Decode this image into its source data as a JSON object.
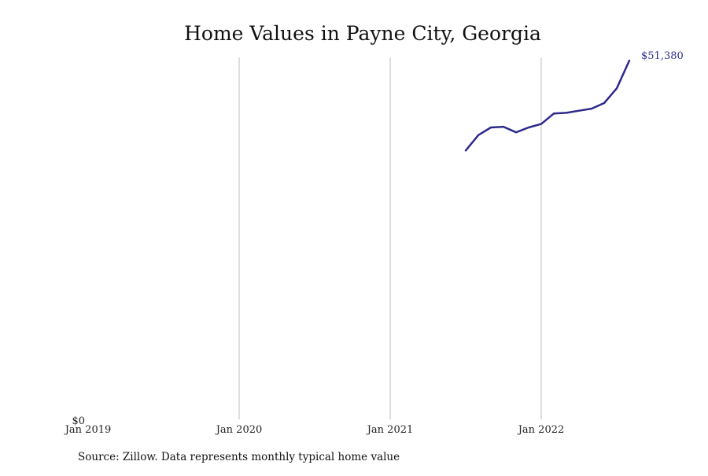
{
  "chart_data": {
    "type": "line",
    "title": "Home Values in Payne City, Georgia",
    "source": "Source: Zillow. Data represents monthly typical home value",
    "x_ticks": [
      {
        "date": "2019-01",
        "label": "Jan 2019"
      },
      {
        "date": "2020-01",
        "label": "Jan 2020"
      },
      {
        "date": "2021-01",
        "label": "Jan 2021"
      },
      {
        "date": "2022-01",
        "label": "Jan 2022"
      }
    ],
    "y_tick_label": "$0",
    "ylim": [
      0,
      51380
    ],
    "xlim": [
      "2019-01",
      "2022-12"
    ],
    "grid": "vertical",
    "line_color": "#2e2a8c",
    "end_label": "$51,380",
    "series": [
      {
        "x": [
          "2021-07",
          "2021-08",
          "2021-09",
          "2021-10",
          "2021-11",
          "2021-12",
          "2022-01",
          "2022-02",
          "2022-03",
          "2022-04",
          "2022-05",
          "2022-06",
          "2022-07",
          "2022-08"
        ],
        "values": [
          38500,
          40700,
          41800,
          41900,
          41100,
          41800,
          42300,
          43800,
          43900,
          44200,
          44500,
          45300,
          47400,
          51380
        ]
      }
    ]
  }
}
